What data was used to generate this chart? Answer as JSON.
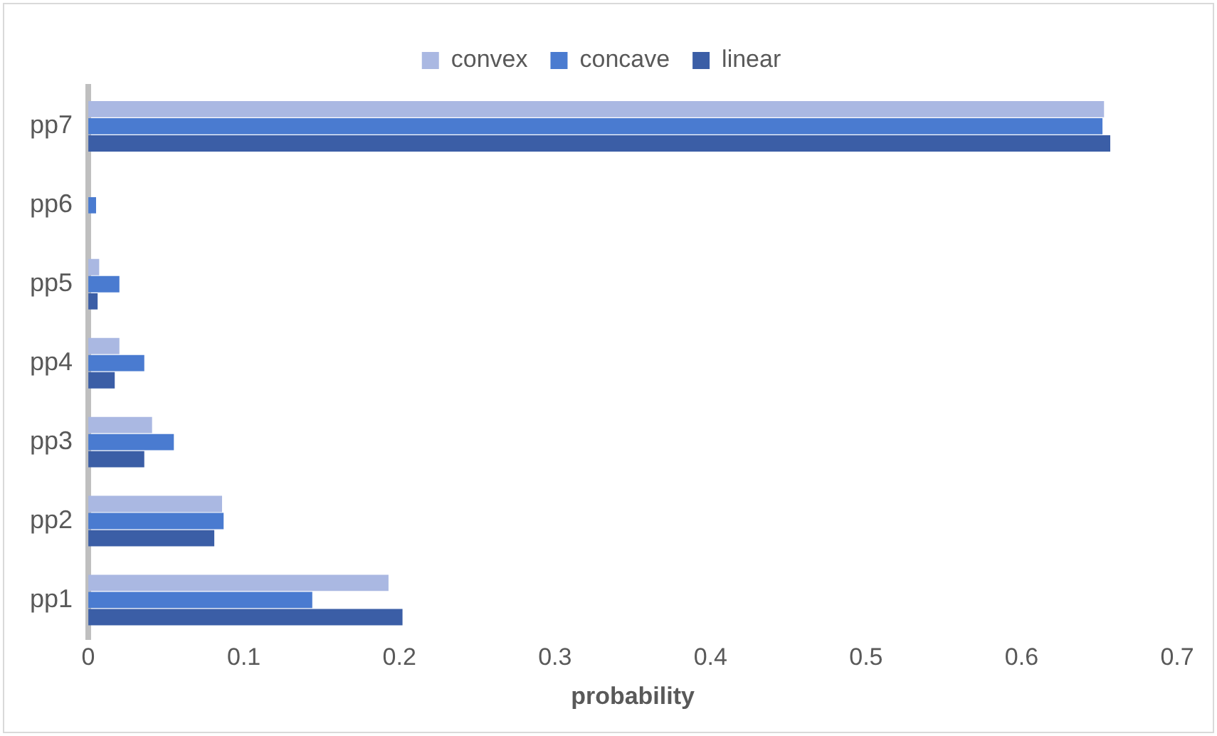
{
  "chart_data": {
    "type": "bar",
    "orientation": "horizontal",
    "xlabel": "probability",
    "categories": [
      "pp7",
      "pp6",
      "pp5",
      "pp4",
      "pp3",
      "pp2",
      "pp1"
    ],
    "series": [
      {
        "name": "convex",
        "color": "#aab8e2",
        "values": [
          0.653,
          0,
          0.007,
          0.02,
          0.041,
          0.086,
          0.193
        ]
      },
      {
        "name": "concave",
        "color": "#4a7bd0",
        "values": [
          0.652,
          0.005,
          0.02,
          0.036,
          0.055,
          0.087,
          0.144
        ]
      },
      {
        "name": "linear",
        "color": "#3b5ea6",
        "values": [
          0.657,
          0,
          0.006,
          0.017,
          0.036,
          0.081,
          0.202
        ]
      }
    ],
    "xlim": [
      0,
      0.7
    ],
    "xticks": [
      0,
      0.1,
      0.2,
      0.3,
      0.4,
      0.5,
      0.6,
      0.7
    ],
    "grid": false,
    "legend": "top"
  }
}
